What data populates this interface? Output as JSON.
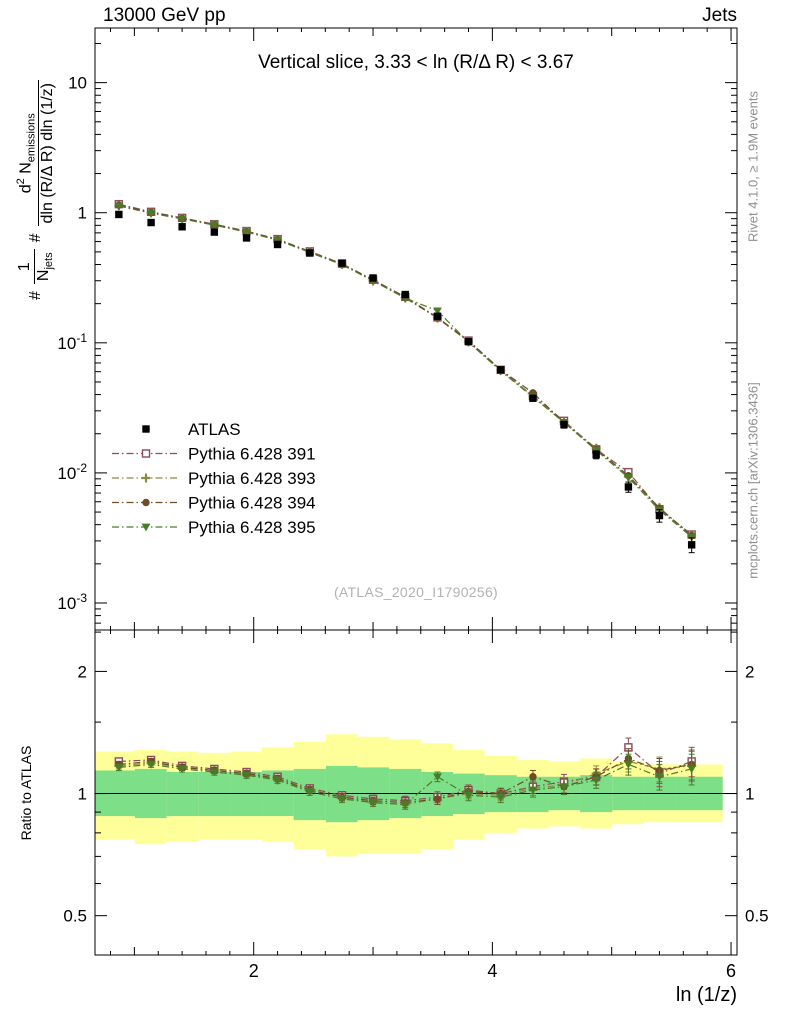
{
  "header": {
    "left_label": "13000 GeV pp",
    "right_label": "Jets"
  },
  "panel": {
    "title": "Vertical slice, 3.33 < ln (R/Δ R) < 3.67",
    "watermark": "(ATLAS_2020_I1790256)"
  },
  "side_notes": {
    "top_right": "Rivet 4.1.0, ≥ 1.9M events",
    "bottom_right": "mcplots.cern.ch [arXiv:1306.3436]"
  },
  "axes": {
    "x_label": "ln (1/z)",
    "ratio_label": "Ratio to ATLAS",
    "y_hash1": "#",
    "y_num1": "1",
    "y_den1": "N",
    "y_den1_sub": "jets",
    "y_hash2": "#",
    "y_num2a": "d",
    "y_num2_sup": "2",
    "y_num2b": " N",
    "y_num2_sub": "emissions",
    "y_den2": "dln (R/Δ R) dln (1/z)"
  },
  "chart_data": {
    "type": "scatter",
    "title": "Vertical slice, 3.33 < ln (R/Δ R) < 3.67",
    "xlabel": "ln (1/z)",
    "ylabel": "1/N_jets d2N_emissions / (dln (R/Δ R) dln (1/z))",
    "ratio_ylabel": "Ratio to ATLAS",
    "xlim": [
      0.67,
      6.05
    ],
    "ylim": [
      0.00062,
      26.3
    ],
    "ratio_ylim": [
      0.4,
      2.53
    ],
    "x_ticks": [
      2,
      4,
      6
    ],
    "y_ticks_exp": [
      1,
      0,
      -1,
      -2,
      -3
    ],
    "ratio_ticks": [
      2,
      1,
      0.5
    ],
    "ratio_minor_ticks": [
      0.4,
      0.6,
      0.7,
      0.8,
      0.9,
      1.5,
      2.5
    ],
    "grid": false,
    "legend_position": "middle-left",
    "x": [
      0.87,
      1.14,
      1.4,
      1.67,
      1.94,
      2.2,
      2.47,
      2.74,
      3.0,
      3.27,
      3.54,
      3.8,
      4.07,
      4.34,
      4.6,
      4.87,
      5.14,
      5.4,
      5.67
    ],
    "series": [
      {
        "name": "ATLAS",
        "marker": "square-filled",
        "color": "#000000",
        "values": [
          0.97,
          0.84,
          0.78,
          0.71,
          0.64,
          0.57,
          0.49,
          0.41,
          0.315,
          0.235,
          0.16,
          0.102,
          0.062,
          0.0375,
          0.0235,
          0.0138,
          0.0078,
          0.0047,
          0.0028
        ],
        "err_rel": [
          0.03,
          0.03,
          0.03,
          0.03,
          0.03,
          0.03,
          0.03,
          0.03,
          0.03,
          0.03,
          0.035,
          0.04,
          0.045,
          0.05,
          0.06,
          0.07,
          0.09,
          0.11,
          0.13
        ]
      },
      {
        "name": "Pythia 6.428 391",
        "marker": "square-open",
        "color": "#8a4a60",
        "ratio": [
          1.2,
          1.21,
          1.17,
          1.15,
          1.13,
          1.1,
          1.03,
          0.99,
          0.97,
          0.96,
          0.98,
          1.02,
          1.0,
          1.04,
          1.07,
          1.1,
          1.3,
          1.12,
          1.2
        ]
      },
      {
        "name": "Pythia 6.428 393",
        "marker": "cross-open",
        "color": "#8a8a40",
        "ratio": [
          1.17,
          1.19,
          1.16,
          1.14,
          1.12,
          1.08,
          1.02,
          0.98,
          0.95,
          0.94,
          0.97,
          1.0,
          0.99,
          1.03,
          1.05,
          1.12,
          1.2,
          1.15,
          1.17
        ]
      },
      {
        "name": "Pythia 6.428 394",
        "marker": "circle-filled",
        "color": "#6e4e28",
        "ratio": [
          1.18,
          1.2,
          1.16,
          1.14,
          1.12,
          1.09,
          1.02,
          0.98,
          0.96,
          0.95,
          0.97,
          1.01,
          1.0,
          1.1,
          1.04,
          1.1,
          1.22,
          1.14,
          1.18
        ]
      },
      {
        "name": "Pythia 6.428 395",
        "marker": "triangle-down-filled",
        "color": "#4a7c28",
        "ratio": [
          1.16,
          1.18,
          1.15,
          1.13,
          1.11,
          1.08,
          1.01,
          0.97,
          0.95,
          0.94,
          1.1,
          0.99,
          0.98,
          1.02,
          1.04,
          1.08,
          1.18,
          1.1,
          1.15
        ]
      }
    ],
    "ratio_err": [
      0.02,
      0.02,
      0.02,
      0.02,
      0.02,
      0.02,
      0.02,
      0.02,
      0.02,
      0.025,
      0.03,
      0.03,
      0.03,
      0.04,
      0.045,
      0.05,
      0.07,
      0.08,
      0.1
    ],
    "bands": {
      "yellow_lo": [
        0.77,
        0.75,
        0.76,
        0.77,
        0.77,
        0.76,
        0.73,
        0.7,
        0.71,
        0.71,
        0.73,
        0.77,
        0.8,
        0.82,
        0.83,
        0.82,
        0.84,
        0.85,
        0.85
      ],
      "yellow_hi": [
        1.27,
        1.28,
        1.27,
        1.26,
        1.27,
        1.3,
        1.34,
        1.4,
        1.38,
        1.36,
        1.33,
        1.28,
        1.24,
        1.21,
        1.2,
        1.22,
        1.2,
        1.18,
        1.18
      ],
      "green_lo": [
        0.88,
        0.87,
        0.88,
        0.88,
        0.88,
        0.88,
        0.86,
        0.85,
        0.86,
        0.87,
        0.88,
        0.89,
        0.9,
        0.9,
        0.91,
        0.9,
        0.91,
        0.91,
        0.91
      ],
      "green_hi": [
        1.14,
        1.15,
        1.13,
        1.13,
        1.13,
        1.14,
        1.15,
        1.17,
        1.16,
        1.15,
        1.13,
        1.12,
        1.11,
        1.1,
        1.1,
        1.11,
        1.1,
        1.1,
        1.1
      ]
    },
    "band_colors": {
      "yellow": "#ffff99",
      "green": "#7ddf87"
    },
    "band_xmax": 5.93
  }
}
